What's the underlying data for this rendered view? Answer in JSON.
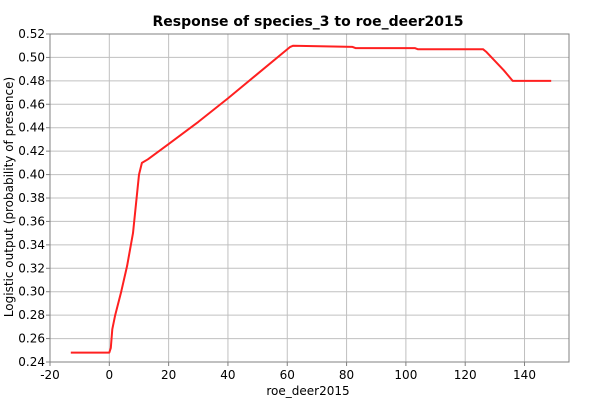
{
  "chart_data": {
    "type": "line",
    "title": "Response of species_3 to roe_deer2015",
    "xlabel": "roe_deer2015",
    "ylabel": "Logistic output (probability of presence)",
    "xlim": [
      -20,
      155
    ],
    "ylim": [
      0.24,
      0.52
    ],
    "xticks": [
      -20,
      0,
      20,
      40,
      60,
      80,
      100,
      120,
      140
    ],
    "yticks": [
      0.24,
      0.26,
      0.28,
      0.3,
      0.32,
      0.34,
      0.36,
      0.38,
      0.4,
      0.42,
      0.44,
      0.46,
      0.48,
      0.5,
      0.52
    ],
    "xtick_labels": [
      "-20",
      "0",
      "20",
      "40",
      "60",
      "80",
      "100",
      "120",
      "140"
    ],
    "ytick_labels": [
      "0.24",
      "0.26",
      "0.28",
      "0.30",
      "0.32",
      "0.34",
      "0.36",
      "0.38",
      "0.40",
      "0.42",
      "0.44",
      "0.46",
      "0.48",
      "0.50",
      "0.52"
    ],
    "grid": true,
    "series": [
      {
        "color": "#ff2020",
        "x": [
          -13,
          0,
          0.5,
          1,
          2,
          4,
          6,
          8,
          9,
          10,
          11,
          13,
          20,
          30,
          40,
          50,
          61,
          62,
          82,
          83,
          103,
          104,
          123,
          124,
          126,
          127,
          130,
          133,
          136,
          137,
          149
        ],
        "y": [
          0.248,
          0.248,
          0.252,
          0.268,
          0.28,
          0.3,
          0.322,
          0.35,
          0.375,
          0.4,
          0.41,
          0.413,
          0.426,
          0.445,
          0.465,
          0.486,
          0.509,
          0.51,
          0.509,
          0.508,
          0.508,
          0.507,
          0.507,
          0.507,
          0.507,
          0.505,
          0.497,
          0.489,
          0.48,
          0.48,
          0.48
        ]
      }
    ]
  }
}
